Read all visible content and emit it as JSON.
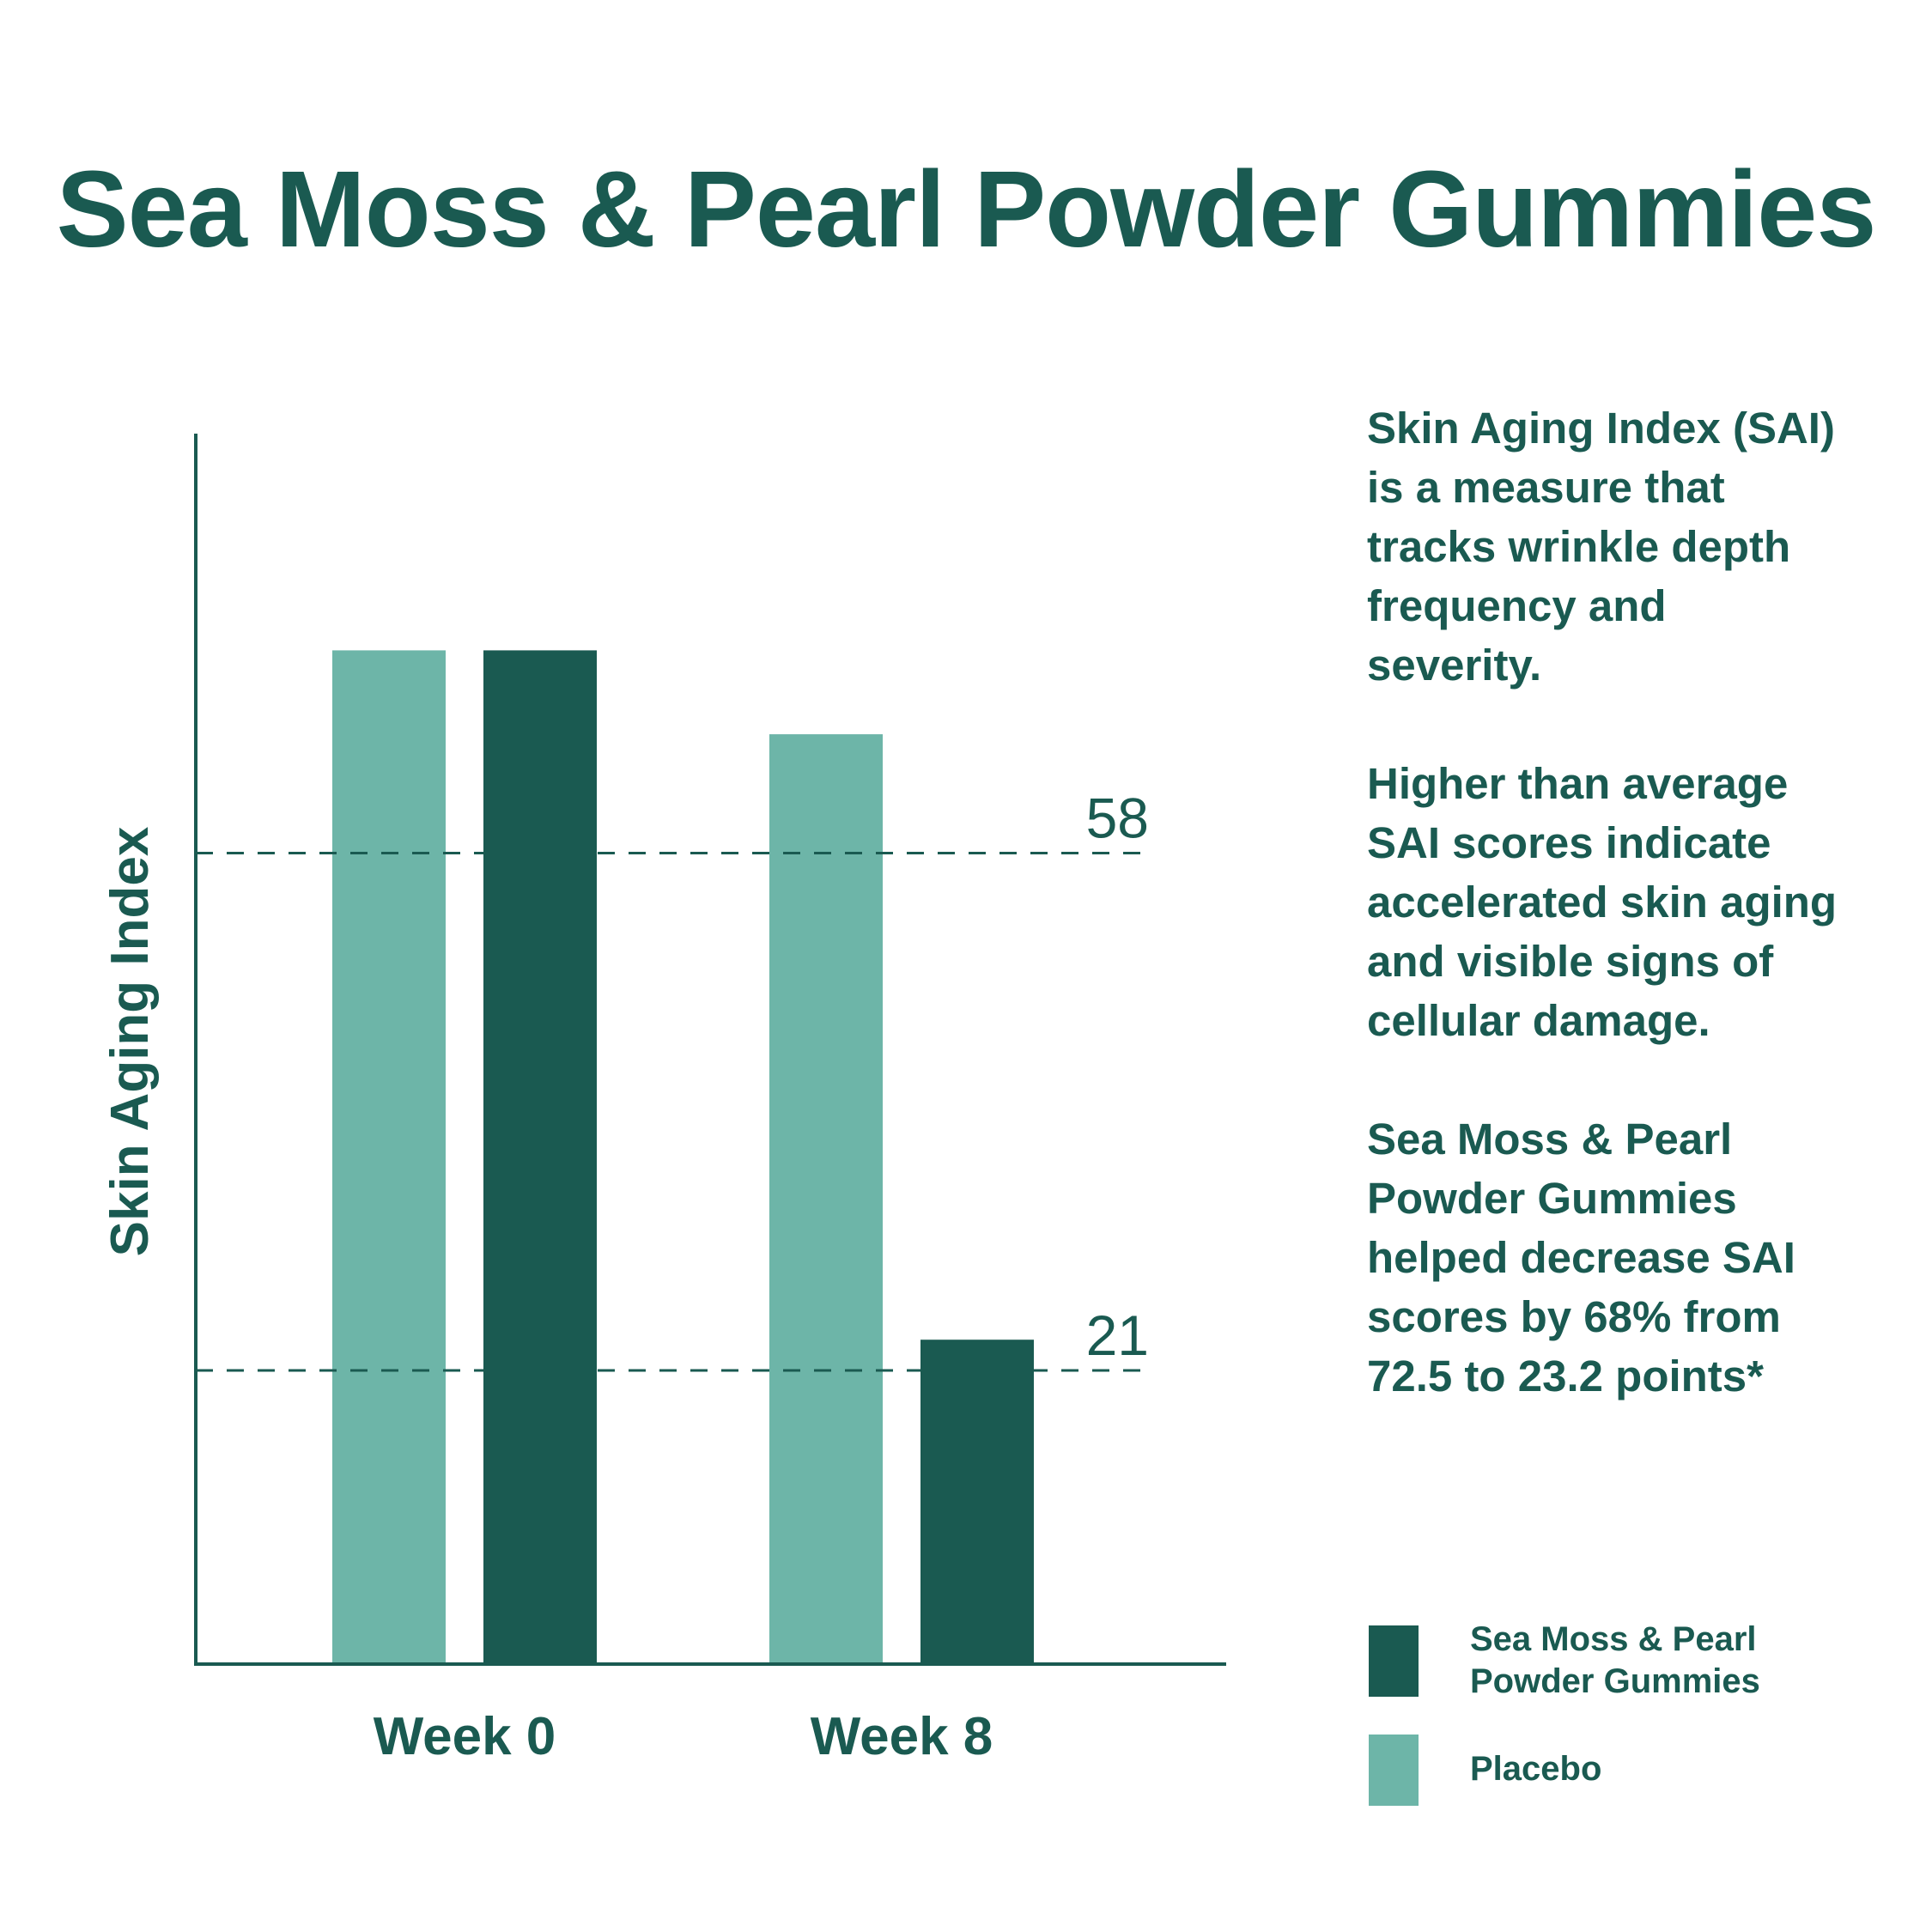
{
  "title": "Sea Moss & Pearl Powder Gummies",
  "notes": [
    "Skin Aging Index (SAI) is a measure that tracks wrinkle depth frequency and severity.",
    "Higher than average SAI scores indicate accelerated skin aging and visible signs of cellular damage.",
    "Sea Moss & Pearl Powder Gummies helped decrease SAI scores by 68% from 72.5 to 23.2 points*"
  ],
  "colors": {
    "text": "#1a5a51",
    "treatment": "#1a5a51",
    "placebo": "#6db5a8"
  },
  "legend": [
    {
      "label_line1": "Sea Moss & Pearl",
      "label_line2": "Powder Gummies",
      "color": "#1a5a51"
    },
    {
      "label_line1": "Placebo",
      "label_line2": "",
      "color": "#6db5a8"
    }
  ],
  "chart_data": {
    "type": "bar",
    "title": "Sea Moss & Pearl Powder Gummies",
    "xlabel": "",
    "ylabel": "Skin Aging Index",
    "categories": [
      "Week 0",
      "Week 8"
    ],
    "series": [
      {
        "name": "Placebo",
        "values": [
          72.5,
          66.5
        ],
        "color": "#6db5a8"
      },
      {
        "name": "Sea Moss & Pearl Powder Gummies",
        "values": [
          72.5,
          23.2
        ],
        "color": "#1a5a51"
      }
    ],
    "reference_lines": [
      {
        "value": 58,
        "label": "58"
      },
      {
        "value": 21,
        "label": "21"
      }
    ],
    "ylim": [
      0,
      88
    ],
    "grid": false,
    "legend_position": "bottom-right"
  }
}
